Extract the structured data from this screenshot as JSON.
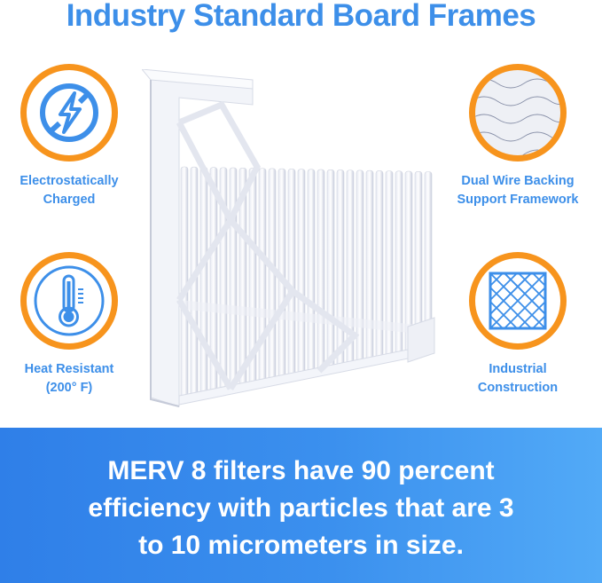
{
  "title": "Industry Standard Board Frames",
  "features": [
    {
      "icon": "no-static-bolt-icon",
      "line1": "Electrostatically",
      "line2": "Charged"
    },
    {
      "icon": "thermometer-icon",
      "line1": "Heat Resistant",
      "line2": "(200° F)"
    },
    {
      "icon": "wire-mesh-icon",
      "line1": "Dual Wire Backing",
      "line2": "Support Framework"
    },
    {
      "icon": "grid-frame-icon",
      "line1": "Industrial",
      "line2": "Construction"
    }
  ],
  "banner": {
    "line1": "MERV 8 filters have 90 percent",
    "line2": "efficiency with particles that are 3",
    "line3": "to 10 micrometers in size."
  },
  "colors": {
    "accent_blue": "#3d8fe9",
    "ring_orange": "#f7941d",
    "banner_start": "#2f7fe8",
    "banner_end": "#52aaf7"
  }
}
